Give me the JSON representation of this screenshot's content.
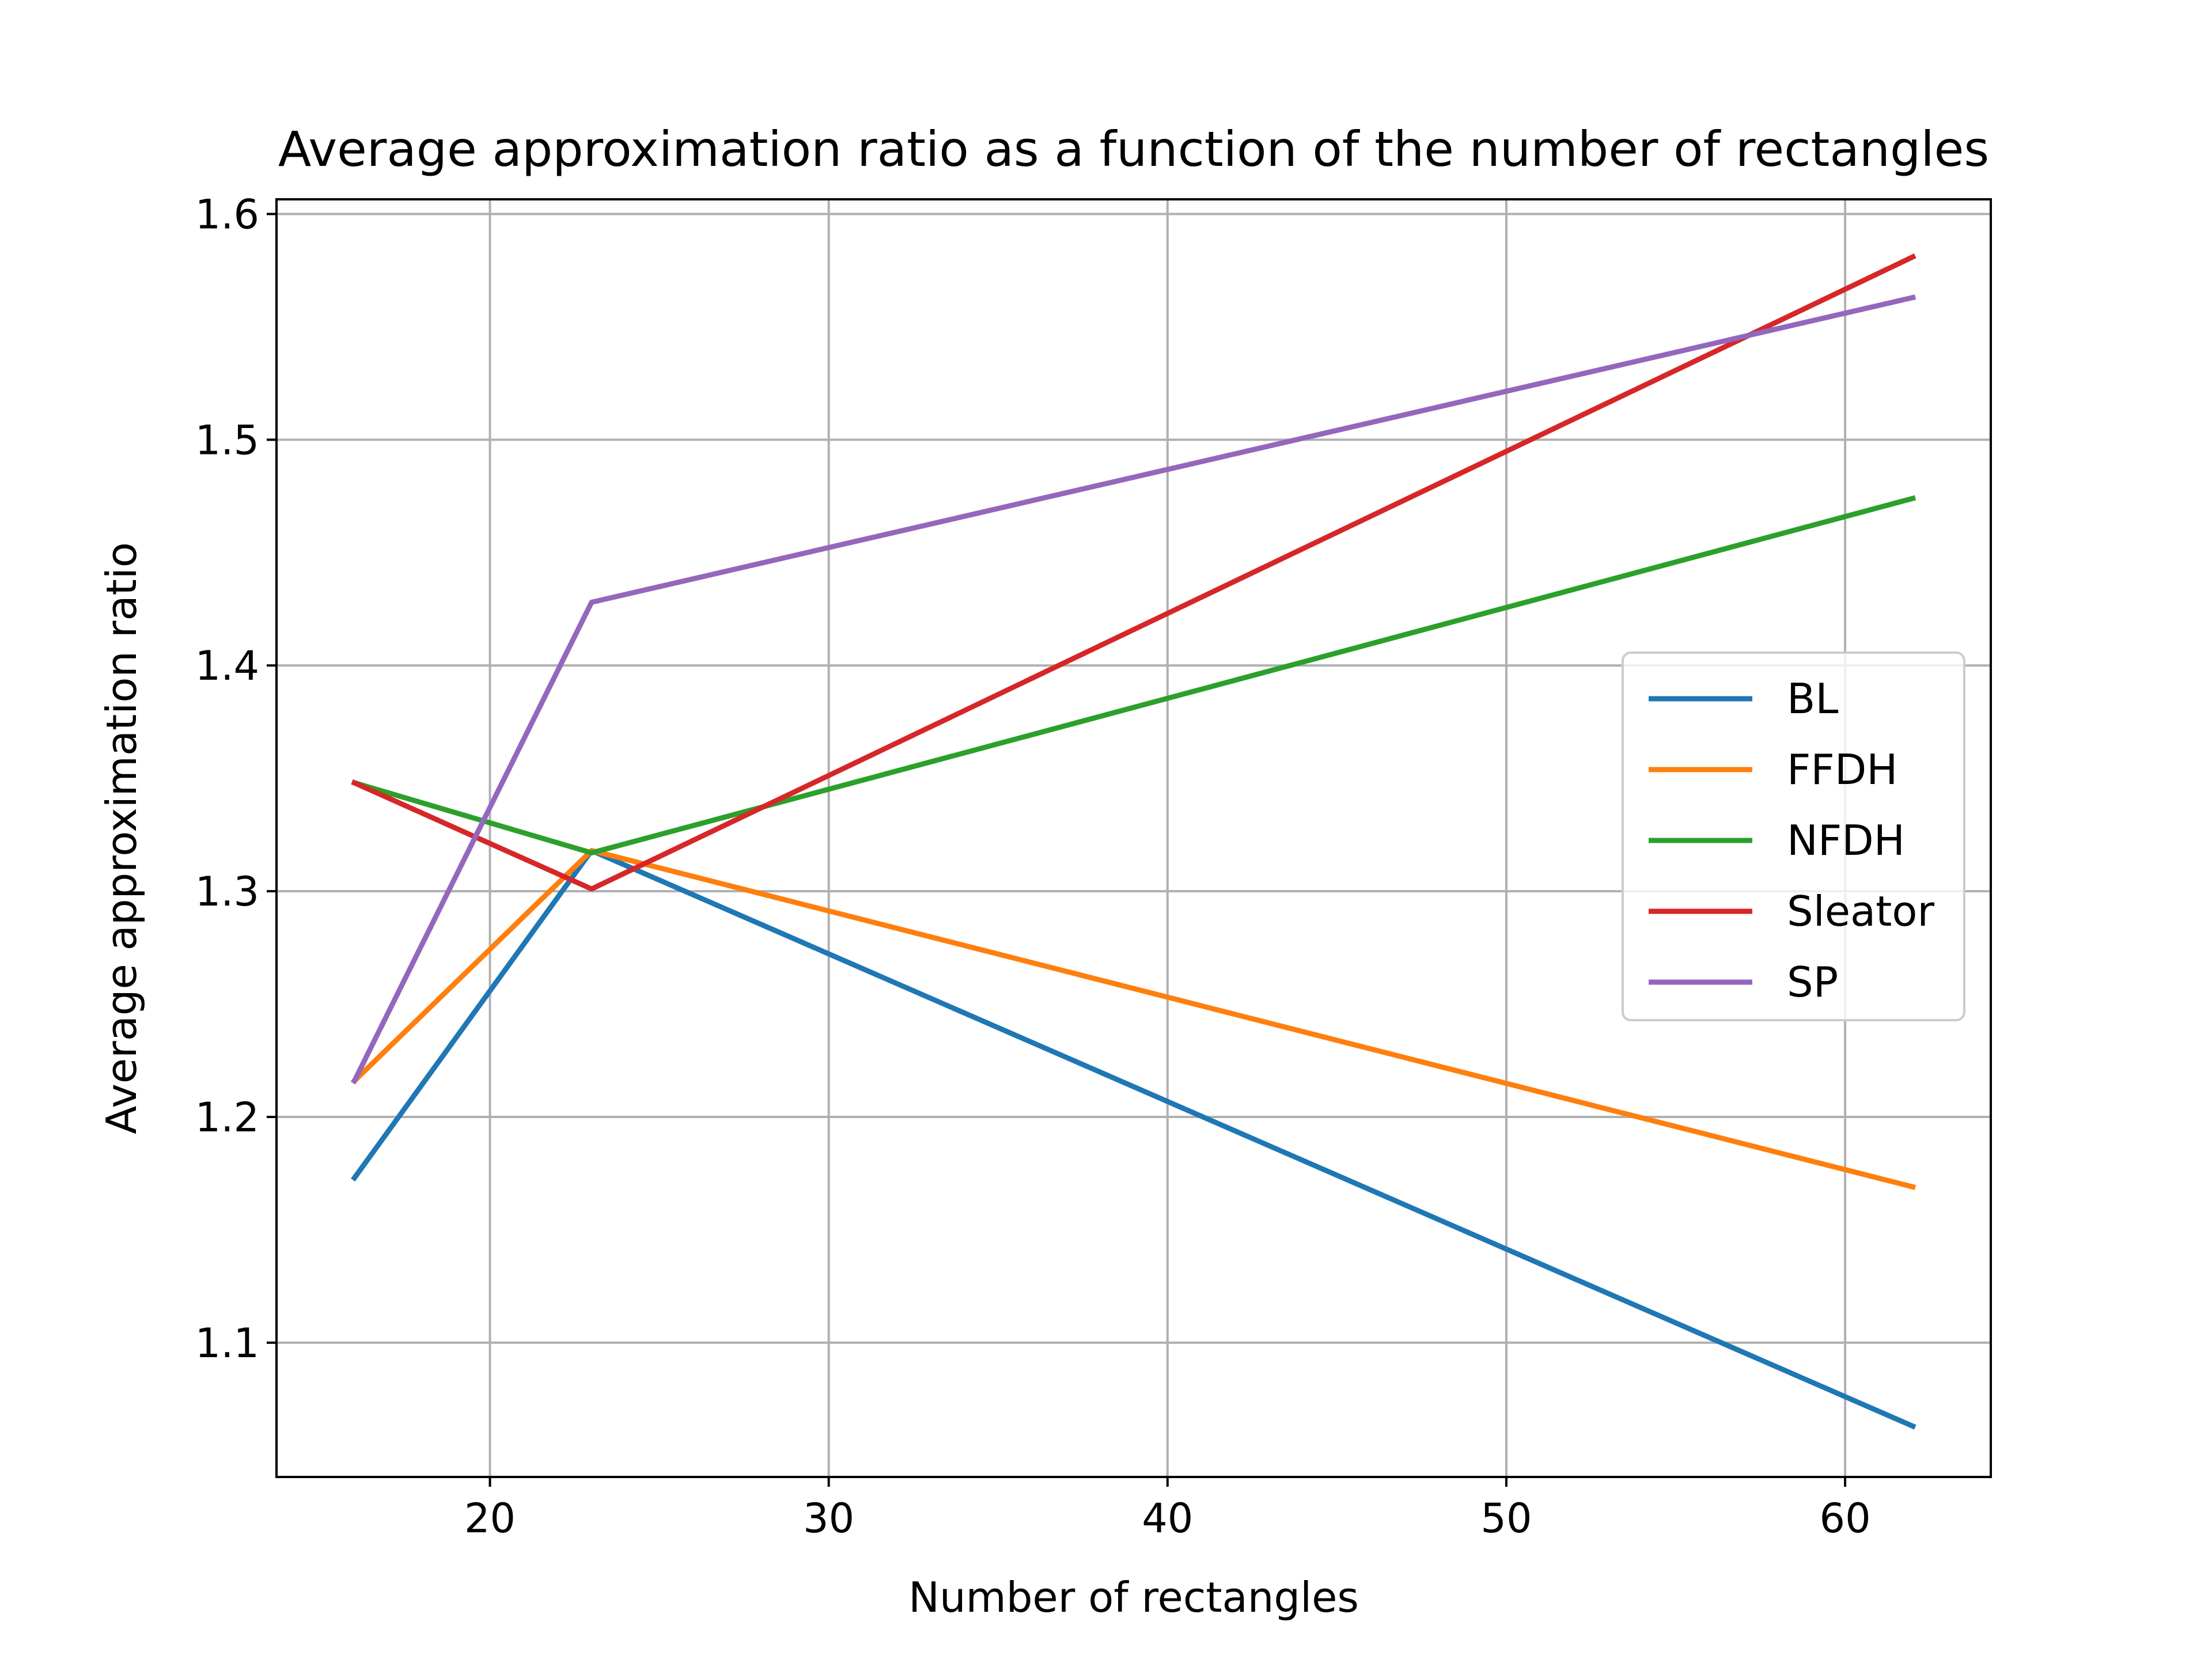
{
  "chart_data": {
    "type": "line",
    "title": "Average approximation ratio as a function of the number of rectangles",
    "xlabel": "Number of rectangles",
    "ylabel": "Average approximation ratio",
    "x": [
      16,
      23,
      62
    ],
    "xlim": [
      13.7,
      64.3
    ],
    "ylim": [
      1.0405,
      1.6065
    ],
    "xticks": [
      20,
      30,
      40,
      50,
      60
    ],
    "xtick_labels": [
      "20",
      "30",
      "40",
      "50",
      "60"
    ],
    "yticks": [
      1.1,
      1.2,
      1.3,
      1.4,
      1.5,
      1.6
    ],
    "ytick_labels": [
      "1.1",
      "1.2",
      "1.3",
      "1.4",
      "1.5",
      "1.6"
    ],
    "grid": true,
    "legend_position": "center-right",
    "series": [
      {
        "name": "BL",
        "color": "#1f77b4",
        "values": [
          1.173,
          1.318,
          1.063
        ]
      },
      {
        "name": "FFDH",
        "color": "#ff7f0e",
        "values": [
          1.216,
          1.318,
          1.169
        ]
      },
      {
        "name": "NFDH",
        "color": "#2ca02c",
        "values": [
          1.348,
          1.317,
          1.474
        ]
      },
      {
        "name": "Sleator",
        "color": "#d62728",
        "values": [
          1.348,
          1.301,
          1.581
        ]
      },
      {
        "name": "SP",
        "color": "#9467bd",
        "values": [
          1.216,
          1.428,
          1.563
        ]
      }
    ]
  }
}
